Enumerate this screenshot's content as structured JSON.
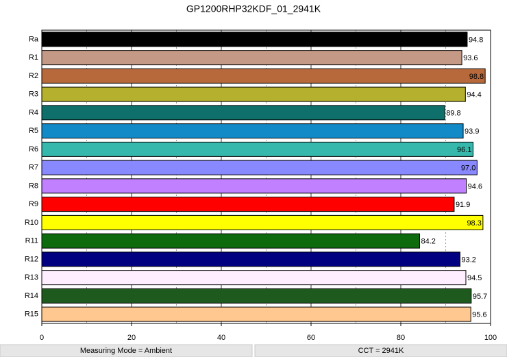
{
  "chart_data": {
    "type": "barh",
    "title": "GP1200RHP32KDF_01_2941K",
    "categories": [
      "Ra",
      "R1",
      "R2",
      "R3",
      "R4",
      "R5",
      "R6",
      "R7",
      "R8",
      "R9",
      "R10",
      "R11",
      "R12",
      "R13",
      "R14",
      "R15"
    ],
    "values": [
      94.8,
      93.6,
      98.8,
      94.4,
      89.8,
      93.9,
      96.1,
      97,
      94.6,
      91.9,
      98.3,
      84.2,
      93.2,
      94.5,
      95.7,
      95.6
    ],
    "value_labels": [
      "94.8",
      "93.6",
      "98.8",
      "94.4",
      "89.8",
      "93.9",
      "96.1",
      "97.0",
      "94.6",
      "91.9",
      "98.3",
      "84.2",
      "93.2",
      "94.5",
      "95.7",
      "95.6"
    ],
    "colors": [
      "#000000",
      "#c49a87",
      "#b8693c",
      "#b5b02e",
      "#0f6f6a",
      "#138ac8",
      "#36b8ac",
      "#8888ff",
      "#c080ff",
      "#ff0000",
      "#ffff00",
      "#0d6b0d",
      "#000080",
      "#ffeeff",
      "#1e5a1e",
      "#ffc890"
    ],
    "xlim": [
      0,
      100
    ],
    "xticks": [
      0,
      20,
      40,
      60,
      80,
      100
    ],
    "xminor": [
      10,
      30,
      50,
      70,
      90
    ],
    "grid": true
  },
  "footer": [
    "Measuring Mode = Ambient",
    "CCT = 2941K"
  ]
}
